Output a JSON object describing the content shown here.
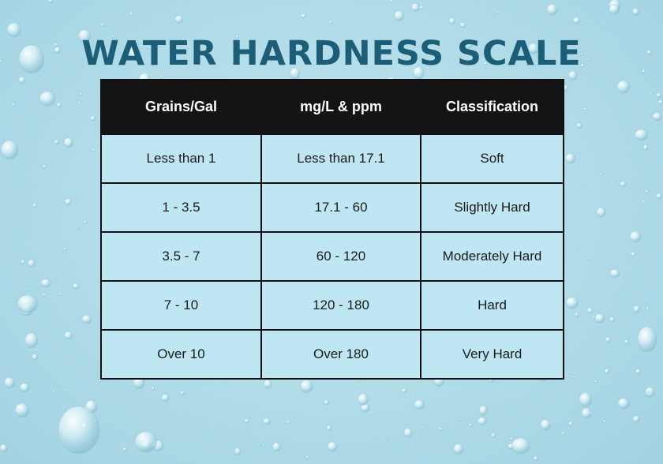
{
  "title": "WATER HARDNESS SCALE",
  "table": {
    "headers": [
      "Grains/Gal",
      "mg/L & ppm",
      "Classification"
    ],
    "rows": [
      [
        "Less than 1",
        "Less than 17.1",
        "Soft"
      ],
      [
        "1 - 3.5",
        "17.1 - 60",
        "Slightly Hard"
      ],
      [
        "3.5 - 7",
        "60 - 120",
        "Moderately Hard"
      ],
      [
        "7 - 10",
        "120 - 180",
        "Hard"
      ],
      [
        "Over 10",
        "Over 180",
        "Very Hard"
      ]
    ]
  },
  "colors": {
    "background": "#b3dde9",
    "title": "#1c5d78",
    "header_bg": "#141414",
    "header_text": "#ffffff",
    "cell_bg": "#bfe6f3",
    "border": "#111111"
  }
}
